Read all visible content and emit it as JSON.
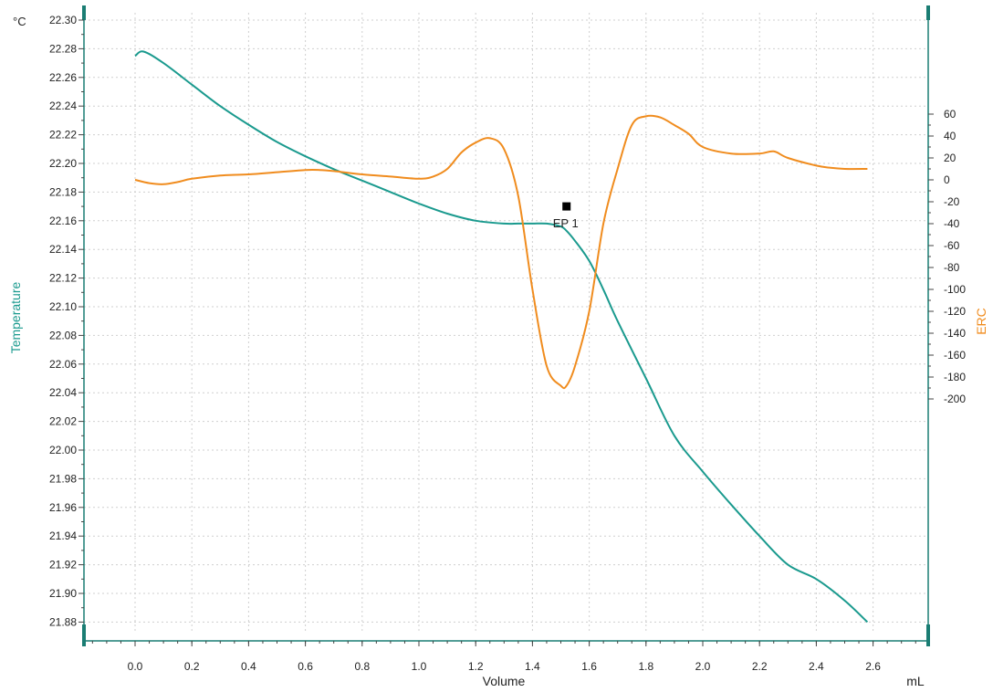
{
  "chart_data": {
    "type": "line",
    "x_axis": {
      "label": "Volume",
      "unit": "mL",
      "range": [
        -0.15,
        2.8
      ],
      "ticks": [
        "0.0",
        "0.2",
        "0.4",
        "0.6",
        "0.8",
        "1.0",
        "1.2",
        "1.4",
        "1.6",
        "1.8",
        "2.0",
        "2.2",
        "2.4",
        "2.6"
      ]
    },
    "y_axis_left": {
      "label": "Temperature",
      "unit": "°C",
      "range": [
        21.87,
        22.3
      ],
      "ticks": [
        "21.88",
        "21.90",
        "21.92",
        "21.94",
        "21.96",
        "21.98",
        "22.00",
        "22.02",
        "22.04",
        "22.06",
        "22.08",
        "22.10",
        "22.12",
        "22.14",
        "22.16",
        "22.18",
        "22.20",
        "22.22",
        "22.24",
        "22.26",
        "22.28",
        "22.30"
      ]
    },
    "y_axis_right": {
      "label": "ERC",
      "range": [
        -205,
        75
      ],
      "ticks": [
        "60",
        "40",
        "20",
        "0",
        "-20",
        "-40",
        "-60",
        "-80",
        "-100",
        "-120",
        "-140",
        "-160",
        "-180",
        "-200"
      ]
    },
    "grid": true,
    "series": [
      {
        "name": "Temperature",
        "axis": "left",
        "color": "#1a9a8e",
        "x": [
          0.0,
          0.03,
          0.1,
          0.2,
          0.3,
          0.4,
          0.5,
          0.6,
          0.7,
          0.8,
          0.9,
          1.0,
          1.1,
          1.2,
          1.3,
          1.35,
          1.4,
          1.45,
          1.5,
          1.52,
          1.55,
          1.6,
          1.65,
          1.7,
          1.8,
          1.9,
          2.0,
          2.1,
          2.2,
          2.3,
          2.4,
          2.5,
          2.58
        ],
        "y": [
          22.275,
          22.278,
          22.27,
          22.255,
          22.24,
          22.227,
          22.215,
          22.205,
          22.196,
          22.188,
          22.18,
          22.172,
          22.165,
          22.16,
          22.158,
          22.158,
          22.158,
          22.158,
          22.156,
          22.153,
          22.146,
          22.132,
          22.112,
          22.09,
          22.05,
          22.01,
          21.985,
          21.962,
          21.94,
          21.92,
          21.91,
          21.895,
          21.88
        ]
      },
      {
        "name": "ERC",
        "axis": "right",
        "color": "#f08c1e",
        "x": [
          0.0,
          0.05,
          0.1,
          0.15,
          0.2,
          0.3,
          0.4,
          0.5,
          0.6,
          0.65,
          0.7,
          0.8,
          0.9,
          1.0,
          1.05,
          1.1,
          1.15,
          1.2,
          1.25,
          1.3,
          1.35,
          1.4,
          1.45,
          1.5,
          1.52,
          1.55,
          1.6,
          1.65,
          1.7,
          1.75,
          1.8,
          1.85,
          1.9,
          1.95,
          2.0,
          2.1,
          2.2,
          2.25,
          2.3,
          2.4,
          2.45,
          2.5,
          2.58
        ],
        "y": [
          0,
          -3,
          -4,
          -2,
          1,
          4,
          5,
          7,
          9,
          9,
          8,
          5,
          3,
          1,
          3,
          10,
          25,
          34,
          38,
          28,
          -15,
          -100,
          -170,
          -188,
          -188,
          -170,
          -120,
          -40,
          10,
          50,
          58,
          57,
          50,
          42,
          30,
          24,
          24,
          26,
          20,
          13,
          11,
          10,
          10
        ]
      }
    ],
    "annotations": [
      {
        "text": "EP 1",
        "x": 1.52,
        "y": 22.17,
        "axis": "left",
        "marker": "square"
      }
    ]
  }
}
